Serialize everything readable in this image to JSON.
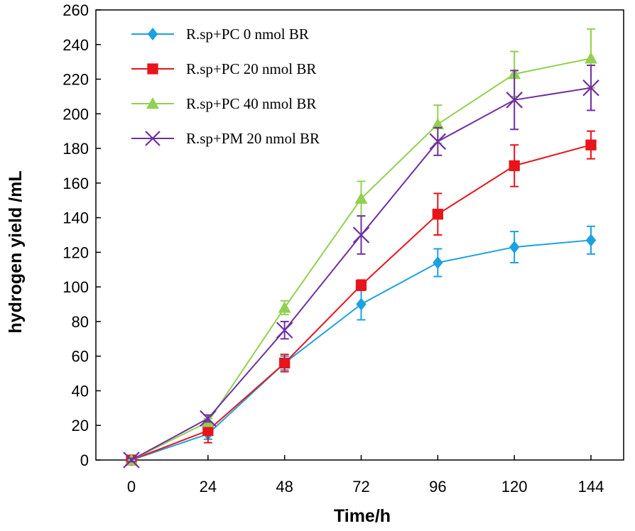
{
  "chart_data": {
    "type": "line",
    "xlabel": "Time/h",
    "ylabel": "hydrogen yield /mL",
    "x": [
      0,
      24,
      48,
      72,
      96,
      120,
      144
    ],
    "x_ticks": [
      "0",
      "24",
      "48",
      "72",
      "96",
      "120",
      "144"
    ],
    "ylim": [
      0,
      260
    ],
    "y_ticks": [
      "0",
      "20",
      "40",
      "60",
      "80",
      "100",
      "120",
      "140",
      "160",
      "180",
      "200",
      "220",
      "240",
      "260"
    ],
    "grid": false,
    "legend_position": "top-left",
    "series": [
      {
        "name": "R.sp+PC 0 nmol BR",
        "color": "#1BA1E2",
        "marker": "diamond",
        "values": [
          0,
          15,
          56,
          90,
          114,
          123,
          127
        ],
        "errors": [
          1,
          3,
          4,
          9,
          8,
          9,
          8
        ]
      },
      {
        "name": "R.sp+PC 20 nmol BR",
        "color": "#E8141B",
        "marker": "square",
        "values": [
          0,
          17,
          56,
          101,
          142,
          170,
          182
        ],
        "errors": [
          1,
          7,
          5,
          3,
          12,
          12,
          8
        ]
      },
      {
        "name": "R.sp+PC 40 nmol BR",
        "color": "#92D050",
        "marker": "triangle",
        "values": [
          0,
          22,
          88,
          151,
          194,
          223,
          232
        ],
        "errors": [
          1,
          2,
          4,
          10,
          11,
          13,
          17
        ]
      },
      {
        "name": "R.sp+PM 20 nmol BR",
        "color": "#7030A0",
        "marker": "x",
        "values": [
          0,
          24,
          75,
          130,
          184,
          208,
          215
        ],
        "errors": [
          1,
          2,
          5,
          11,
          8,
          17,
          13
        ]
      }
    ]
  }
}
